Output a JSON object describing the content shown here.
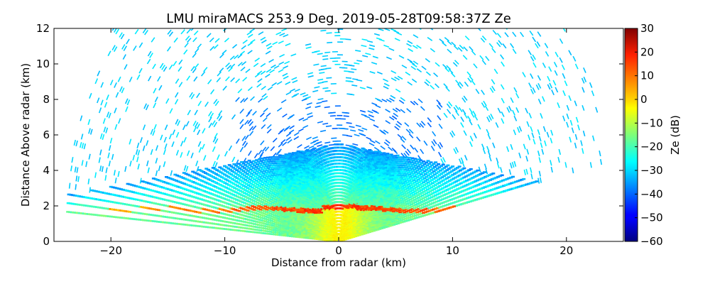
{
  "chart_data": {
    "type": "heatmap",
    "title": "LMU miraMACS 253.9 Deg. 2019-05-28T09:58:37Z  Ze",
    "xlabel": "Distance from radar (km)",
    "ylabel": "Distance Above radar  (km)",
    "xlim": [
      -25,
      25
    ],
    "ylim": [
      0,
      12
    ],
    "xticks": [
      -20,
      -10,
      0,
      10,
      20
    ],
    "yticks": [
      0,
      2,
      4,
      6,
      8,
      10,
      12
    ],
    "colorbar": {
      "label": "Ze (dB)",
      "min": -60,
      "max": 30,
      "ticks": [
        30,
        20,
        10,
        0,
        -10,
        -20,
        -30,
        -40,
        -50,
        -60
      ],
      "colormap": "jet"
    },
    "scan": {
      "azimuth_deg": 253.9,
      "max_range_km": 24,
      "lowest_elevation_left_deg": 4,
      "lowest_elevation_right_deg": 11
    },
    "features": [
      {
        "name": "melting layer bright band",
        "height_km": 1.8,
        "ze_db": 15
      },
      {
        "name": "rain below melting layer",
        "height_range_km": [
          0,
          1.8
        ],
        "ze_db": -5
      },
      {
        "name": "stratiform cloud",
        "height_range_km": [
          2,
          5.5
        ],
        "ze_db": -25
      },
      {
        "name": "noise speckle",
        "ze_db": -30
      }
    ]
  }
}
